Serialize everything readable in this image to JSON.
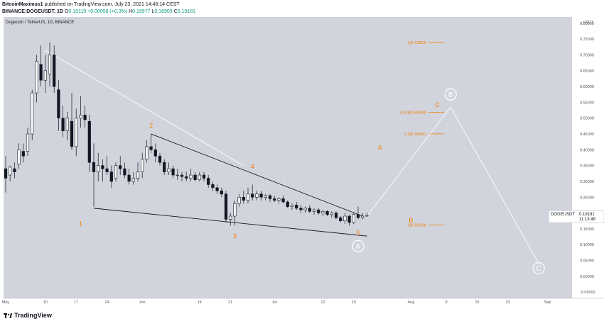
{
  "header": {
    "publisher": "BitcoinMaximus1",
    "published": "published on TradingView.com, July 23, 2021 14:46:14 CEST",
    "symbol": "BINANCE:DOGEUSDT, 1D",
    "o_label": "O",
    "o_val": "0.19119",
    "change": "+0.00058 (+0.3%)",
    "h_label": "H",
    "h_val": "0.19977",
    "l_label": "L",
    "l_val": "0.18909",
    "c_label": "C",
    "c_val": "0.19181"
  },
  "brand": "TradingView",
  "chart_data": {
    "type": "candlestick",
    "title": "Dogecoin / TetherUS, 1D, BINANCE",
    "y_unit": "USDT",
    "ylim": [
      -0.07,
      0.82
    ],
    "y_ticks": [
      "0.80000",
      "0.75000",
      "0.70000",
      "0.65000",
      "0.60000",
      "0.55000",
      "0.50000",
      "0.45000",
      "0.40000",
      "0.35000",
      "0.30000",
      "0.25000",
      "0.20000",
      "0.15000",
      "0.10000",
      "0.05000",
      "0.00000",
      "-0.05000"
    ],
    "y_tick_values": [
      0.8,
      0.75,
      0.7,
      0.65,
      0.6,
      0.55,
      0.5,
      0.45,
      0.4,
      0.35,
      0.3,
      0.25,
      0.2,
      0.15,
      0.1,
      0.05,
      0.0,
      -0.05
    ],
    "x_ticks": [
      {
        "label": "May",
        "day": 0
      },
      {
        "label": "10",
        "day": 9
      },
      {
        "label": "17",
        "day": 16
      },
      {
        "label": "24",
        "day": 23
      },
      {
        "label": "Jun",
        "day": 31
      },
      {
        "label": "14",
        "day": 44
      },
      {
        "label": "21",
        "day": 51
      },
      {
        "label": "Jul",
        "day": 61
      },
      {
        "label": "12",
        "day": 72
      },
      {
        "label": "19",
        "day": 79
      },
      {
        "label": "Aug",
        "day": 92
      },
      {
        "label": "9",
        "day": 100
      },
      {
        "label": "16",
        "day": 107
      },
      {
        "label": "23",
        "day": 114
      },
      {
        "label": "Sep",
        "day": 123
      }
    ],
    "x_range_days": [
      -1,
      128
    ],
    "last_price_label": "DOGEUSDT",
    "last_price": "0.19181",
    "countdown": "11:13:48",
    "fib_levels": [
      {
        "label": "1(0.73883)",
        "value": 0.73883
      },
      {
        "label": "0.618(0.51848)",
        "value": 0.51848
      },
      {
        "label": "0.5(0.45041)",
        "value": 0.45041
      },
      {
        "label": "0(0.16199)",
        "value": 0.16199
      }
    ],
    "wave_labels": [
      {
        "text": "1",
        "day": 17,
        "price": 0.16
      },
      {
        "text": "2",
        "day": 33,
        "price": 0.47
      },
      {
        "text": "3",
        "day": 52,
        "price": 0.12
      },
      {
        "text": "4",
        "day": 56,
        "price": 0.34
      },
      {
        "text": "5",
        "day": 80,
        "price": 0.13
      },
      {
        "text": "A",
        "day": 85,
        "price": 0.4
      },
      {
        "text": "B",
        "day": 92,
        "price": 0.17
      },
      {
        "text": "C",
        "day": 98,
        "price": 0.535
      }
    ],
    "circle_labels": [
      {
        "text": "A",
        "day": 80,
        "price": 0.095
      },
      {
        "text": "B",
        "day": 101,
        "price": 0.575
      },
      {
        "text": "C",
        "day": 121,
        "price": 0.025
      }
    ],
    "trendlines": [
      {
        "from": [
          9,
          0.715
        ],
        "to": [
          54,
          0.35
        ],
        "color": "#ffffff"
      },
      {
        "from": [
          33,
          0.45
        ],
        "to": [
          81,
          0.19
        ],
        "color": "#131722"
      },
      {
        "from": [
          20,
          0.215
        ],
        "to": [
          82,
          0.127
        ],
        "color": "#131722"
      },
      {
        "from": [
          82,
          0.19
        ],
        "to": [
          101,
          0.535
        ],
        "color": "#ffffff"
      },
      {
        "from": [
          101,
          0.535
        ],
        "to": [
          121,
          0.04
        ],
        "color": "#ffffff"
      }
    ],
    "candles": [
      {
        "day": 0,
        "o": 0.34,
        "h": 0.38,
        "l": 0.265,
        "c": 0.31
      },
      {
        "day": 1,
        "o": 0.32,
        "h": 0.35,
        "l": 0.3,
        "c": 0.345
      },
      {
        "day": 2,
        "o": 0.34,
        "h": 0.36,
        "l": 0.31,
        "c": 0.33
      },
      {
        "day": 3,
        "o": 0.355,
        "h": 0.42,
        "l": 0.34,
        "c": 0.4
      },
      {
        "day": 4,
        "o": 0.395,
        "h": 0.42,
        "l": 0.36,
        "c": 0.38
      },
      {
        "day": 5,
        "o": 0.395,
        "h": 0.47,
        "l": 0.38,
        "c": 0.45
      },
      {
        "day": 6,
        "o": 0.45,
        "h": 0.59,
        "l": 0.43,
        "c": 0.58
      },
      {
        "day": 7,
        "o": 0.58,
        "h": 0.7,
        "l": 0.55,
        "c": 0.68
      },
      {
        "day": 8,
        "o": 0.67,
        "h": 0.73,
        "l": 0.6,
        "c": 0.62
      },
      {
        "day": 9,
        "o": 0.62,
        "h": 0.7,
        "l": 0.58,
        "c": 0.65
      },
      {
        "day": 10,
        "o": 0.64,
        "h": 0.74,
        "l": 0.6,
        "c": 0.7
      },
      {
        "day": 11,
        "o": 0.7,
        "h": 0.73,
        "l": 0.58,
        "c": 0.6
      },
      {
        "day": 12,
        "o": 0.59,
        "h": 0.62,
        "l": 0.46,
        "c": 0.5
      },
      {
        "day": 13,
        "o": 0.5,
        "h": 0.54,
        "l": 0.44,
        "c": 0.46
      },
      {
        "day": 14,
        "o": 0.46,
        "h": 0.52,
        "l": 0.43,
        "c": 0.5
      },
      {
        "day": 15,
        "o": 0.49,
        "h": 0.58,
        "l": 0.4,
        "c": 0.41
      },
      {
        "day": 16,
        "o": 0.41,
        "h": 0.53,
        "l": 0.38,
        "c": 0.5
      },
      {
        "day": 17,
        "o": 0.5,
        "h": 0.57,
        "l": 0.47,
        "c": 0.51
      },
      {
        "day": 18,
        "o": 0.51,
        "h": 0.54,
        "l": 0.47,
        "c": 0.495
      },
      {
        "day": 19,
        "o": 0.49,
        "h": 0.51,
        "l": 0.33,
        "c": 0.36
      },
      {
        "day": 20,
        "o": 0.36,
        "h": 0.42,
        "l": 0.22,
        "c": 0.33
      },
      {
        "day": 21,
        "o": 0.33,
        "h": 0.39,
        "l": 0.3,
        "c": 0.35
      },
      {
        "day": 22,
        "o": 0.35,
        "h": 0.37,
        "l": 0.3,
        "c": 0.34
      },
      {
        "day": 23,
        "o": 0.34,
        "h": 0.38,
        "l": 0.32,
        "c": 0.33
      },
      {
        "day": 24,
        "o": 0.33,
        "h": 0.35,
        "l": 0.28,
        "c": 0.3
      },
      {
        "day": 25,
        "o": 0.31,
        "h": 0.36,
        "l": 0.3,
        "c": 0.35
      },
      {
        "day": 26,
        "o": 0.35,
        "h": 0.38,
        "l": 0.32,
        "c": 0.34
      },
      {
        "day": 27,
        "o": 0.34,
        "h": 0.36,
        "l": 0.31,
        "c": 0.32
      },
      {
        "day": 28,
        "o": 0.32,
        "h": 0.34,
        "l": 0.29,
        "c": 0.3
      },
      {
        "day": 29,
        "o": 0.3,
        "h": 0.33,
        "l": 0.29,
        "c": 0.31
      },
      {
        "day": 30,
        "o": 0.31,
        "h": 0.36,
        "l": 0.3,
        "c": 0.33
      },
      {
        "day": 31,
        "o": 0.33,
        "h": 0.39,
        "l": 0.31,
        "c": 0.37
      },
      {
        "day": 32,
        "o": 0.37,
        "h": 0.43,
        "l": 0.36,
        "c": 0.41
      },
      {
        "day": 33,
        "o": 0.41,
        "h": 0.45,
        "l": 0.39,
        "c": 0.4
      },
      {
        "day": 34,
        "o": 0.4,
        "h": 0.42,
        "l": 0.36,
        "c": 0.38
      },
      {
        "day": 35,
        "o": 0.38,
        "h": 0.39,
        "l": 0.35,
        "c": 0.36
      },
      {
        "day": 36,
        "o": 0.36,
        "h": 0.37,
        "l": 0.32,
        "c": 0.33
      },
      {
        "day": 37,
        "o": 0.33,
        "h": 0.36,
        "l": 0.32,
        "c": 0.34
      },
      {
        "day": 38,
        "o": 0.34,
        "h": 0.35,
        "l": 0.31,
        "c": 0.32
      },
      {
        "day": 39,
        "o": 0.32,
        "h": 0.34,
        "l": 0.305,
        "c": 0.32
      },
      {
        "day": 40,
        "o": 0.32,
        "h": 0.33,
        "l": 0.3,
        "c": 0.315
      },
      {
        "day": 41,
        "o": 0.315,
        "h": 0.33,
        "l": 0.3,
        "c": 0.31
      },
      {
        "day": 42,
        "o": 0.31,
        "h": 0.34,
        "l": 0.3,
        "c": 0.32
      },
      {
        "day": 43,
        "o": 0.32,
        "h": 0.33,
        "l": 0.3,
        "c": 0.305
      },
      {
        "day": 44,
        "o": 0.305,
        "h": 0.33,
        "l": 0.3,
        "c": 0.32
      },
      {
        "day": 45,
        "o": 0.32,
        "h": 0.33,
        "l": 0.3,
        "c": 0.31
      },
      {
        "day": 46,
        "o": 0.31,
        "h": 0.32,
        "l": 0.28,
        "c": 0.29
      },
      {
        "day": 47,
        "o": 0.29,
        "h": 0.3,
        "l": 0.27,
        "c": 0.28
      },
      {
        "day": 48,
        "o": 0.28,
        "h": 0.29,
        "l": 0.26,
        "c": 0.27
      },
      {
        "day": 49,
        "o": 0.27,
        "h": 0.28,
        "l": 0.25,
        "c": 0.26
      },
      {
        "day": 50,
        "o": 0.26,
        "h": 0.27,
        "l": 0.17,
        "c": 0.18
      },
      {
        "day": 51,
        "o": 0.18,
        "h": 0.2,
        "l": 0.16,
        "c": 0.19
      },
      {
        "day": 52,
        "o": 0.19,
        "h": 0.24,
        "l": 0.16,
        "c": 0.23
      },
      {
        "day": 53,
        "o": 0.23,
        "h": 0.26,
        "l": 0.22,
        "c": 0.25
      },
      {
        "day": 54,
        "o": 0.25,
        "h": 0.27,
        "l": 0.23,
        "c": 0.24
      },
      {
        "day": 55,
        "o": 0.24,
        "h": 0.28,
        "l": 0.23,
        "c": 0.26
      },
      {
        "day": 56,
        "o": 0.26,
        "h": 0.29,
        "l": 0.24,
        "c": 0.25
      },
      {
        "day": 57,
        "o": 0.25,
        "h": 0.27,
        "l": 0.24,
        "c": 0.26
      },
      {
        "day": 58,
        "o": 0.26,
        "h": 0.27,
        "l": 0.24,
        "c": 0.25
      },
      {
        "day": 59,
        "o": 0.25,
        "h": 0.26,
        "l": 0.24,
        "c": 0.255
      },
      {
        "day": 60,
        "o": 0.255,
        "h": 0.26,
        "l": 0.235,
        "c": 0.245
      },
      {
        "day": 61,
        "o": 0.245,
        "h": 0.255,
        "l": 0.235,
        "c": 0.24
      },
      {
        "day": 62,
        "o": 0.24,
        "h": 0.25,
        "l": 0.23,
        "c": 0.245
      },
      {
        "day": 63,
        "o": 0.245,
        "h": 0.255,
        "l": 0.23,
        "c": 0.235
      },
      {
        "day": 64,
        "o": 0.235,
        "h": 0.24,
        "l": 0.215,
        "c": 0.22
      },
      {
        "day": 65,
        "o": 0.22,
        "h": 0.23,
        "l": 0.21,
        "c": 0.225
      },
      {
        "day": 66,
        "o": 0.225,
        "h": 0.235,
        "l": 0.21,
        "c": 0.215
      },
      {
        "day": 67,
        "o": 0.215,
        "h": 0.225,
        "l": 0.2,
        "c": 0.21
      },
      {
        "day": 68,
        "o": 0.21,
        "h": 0.22,
        "l": 0.2,
        "c": 0.215
      },
      {
        "day": 69,
        "o": 0.215,
        "h": 0.225,
        "l": 0.2,
        "c": 0.205
      },
      {
        "day": 70,
        "o": 0.205,
        "h": 0.215,
        "l": 0.195,
        "c": 0.21
      },
      {
        "day": 71,
        "o": 0.21,
        "h": 0.215,
        "l": 0.195,
        "c": 0.2
      },
      {
        "day": 72,
        "o": 0.2,
        "h": 0.21,
        "l": 0.19,
        "c": 0.205
      },
      {
        "day": 73,
        "o": 0.205,
        "h": 0.21,
        "l": 0.19,
        "c": 0.195
      },
      {
        "day": 74,
        "o": 0.195,
        "h": 0.205,
        "l": 0.185,
        "c": 0.2
      },
      {
        "day": 75,
        "o": 0.2,
        "h": 0.205,
        "l": 0.18,
        "c": 0.185
      },
      {
        "day": 76,
        "o": 0.185,
        "h": 0.19,
        "l": 0.17,
        "c": 0.175
      },
      {
        "day": 77,
        "o": 0.175,
        "h": 0.2,
        "l": 0.165,
        "c": 0.19
      },
      {
        "day": 78,
        "o": 0.19,
        "h": 0.195,
        "l": 0.16,
        "c": 0.17
      },
      {
        "day": 79,
        "o": 0.17,
        "h": 0.2,
        "l": 0.165,
        "c": 0.195
      },
      {
        "day": 80,
        "o": 0.195,
        "h": 0.22,
        "l": 0.18,
        "c": 0.185
      },
      {
        "day": 81,
        "o": 0.185,
        "h": 0.2,
        "l": 0.18,
        "c": 0.19
      },
      {
        "day": 82,
        "o": 0.19,
        "h": 0.2,
        "l": 0.189,
        "c": 0.192
      }
    ]
  }
}
